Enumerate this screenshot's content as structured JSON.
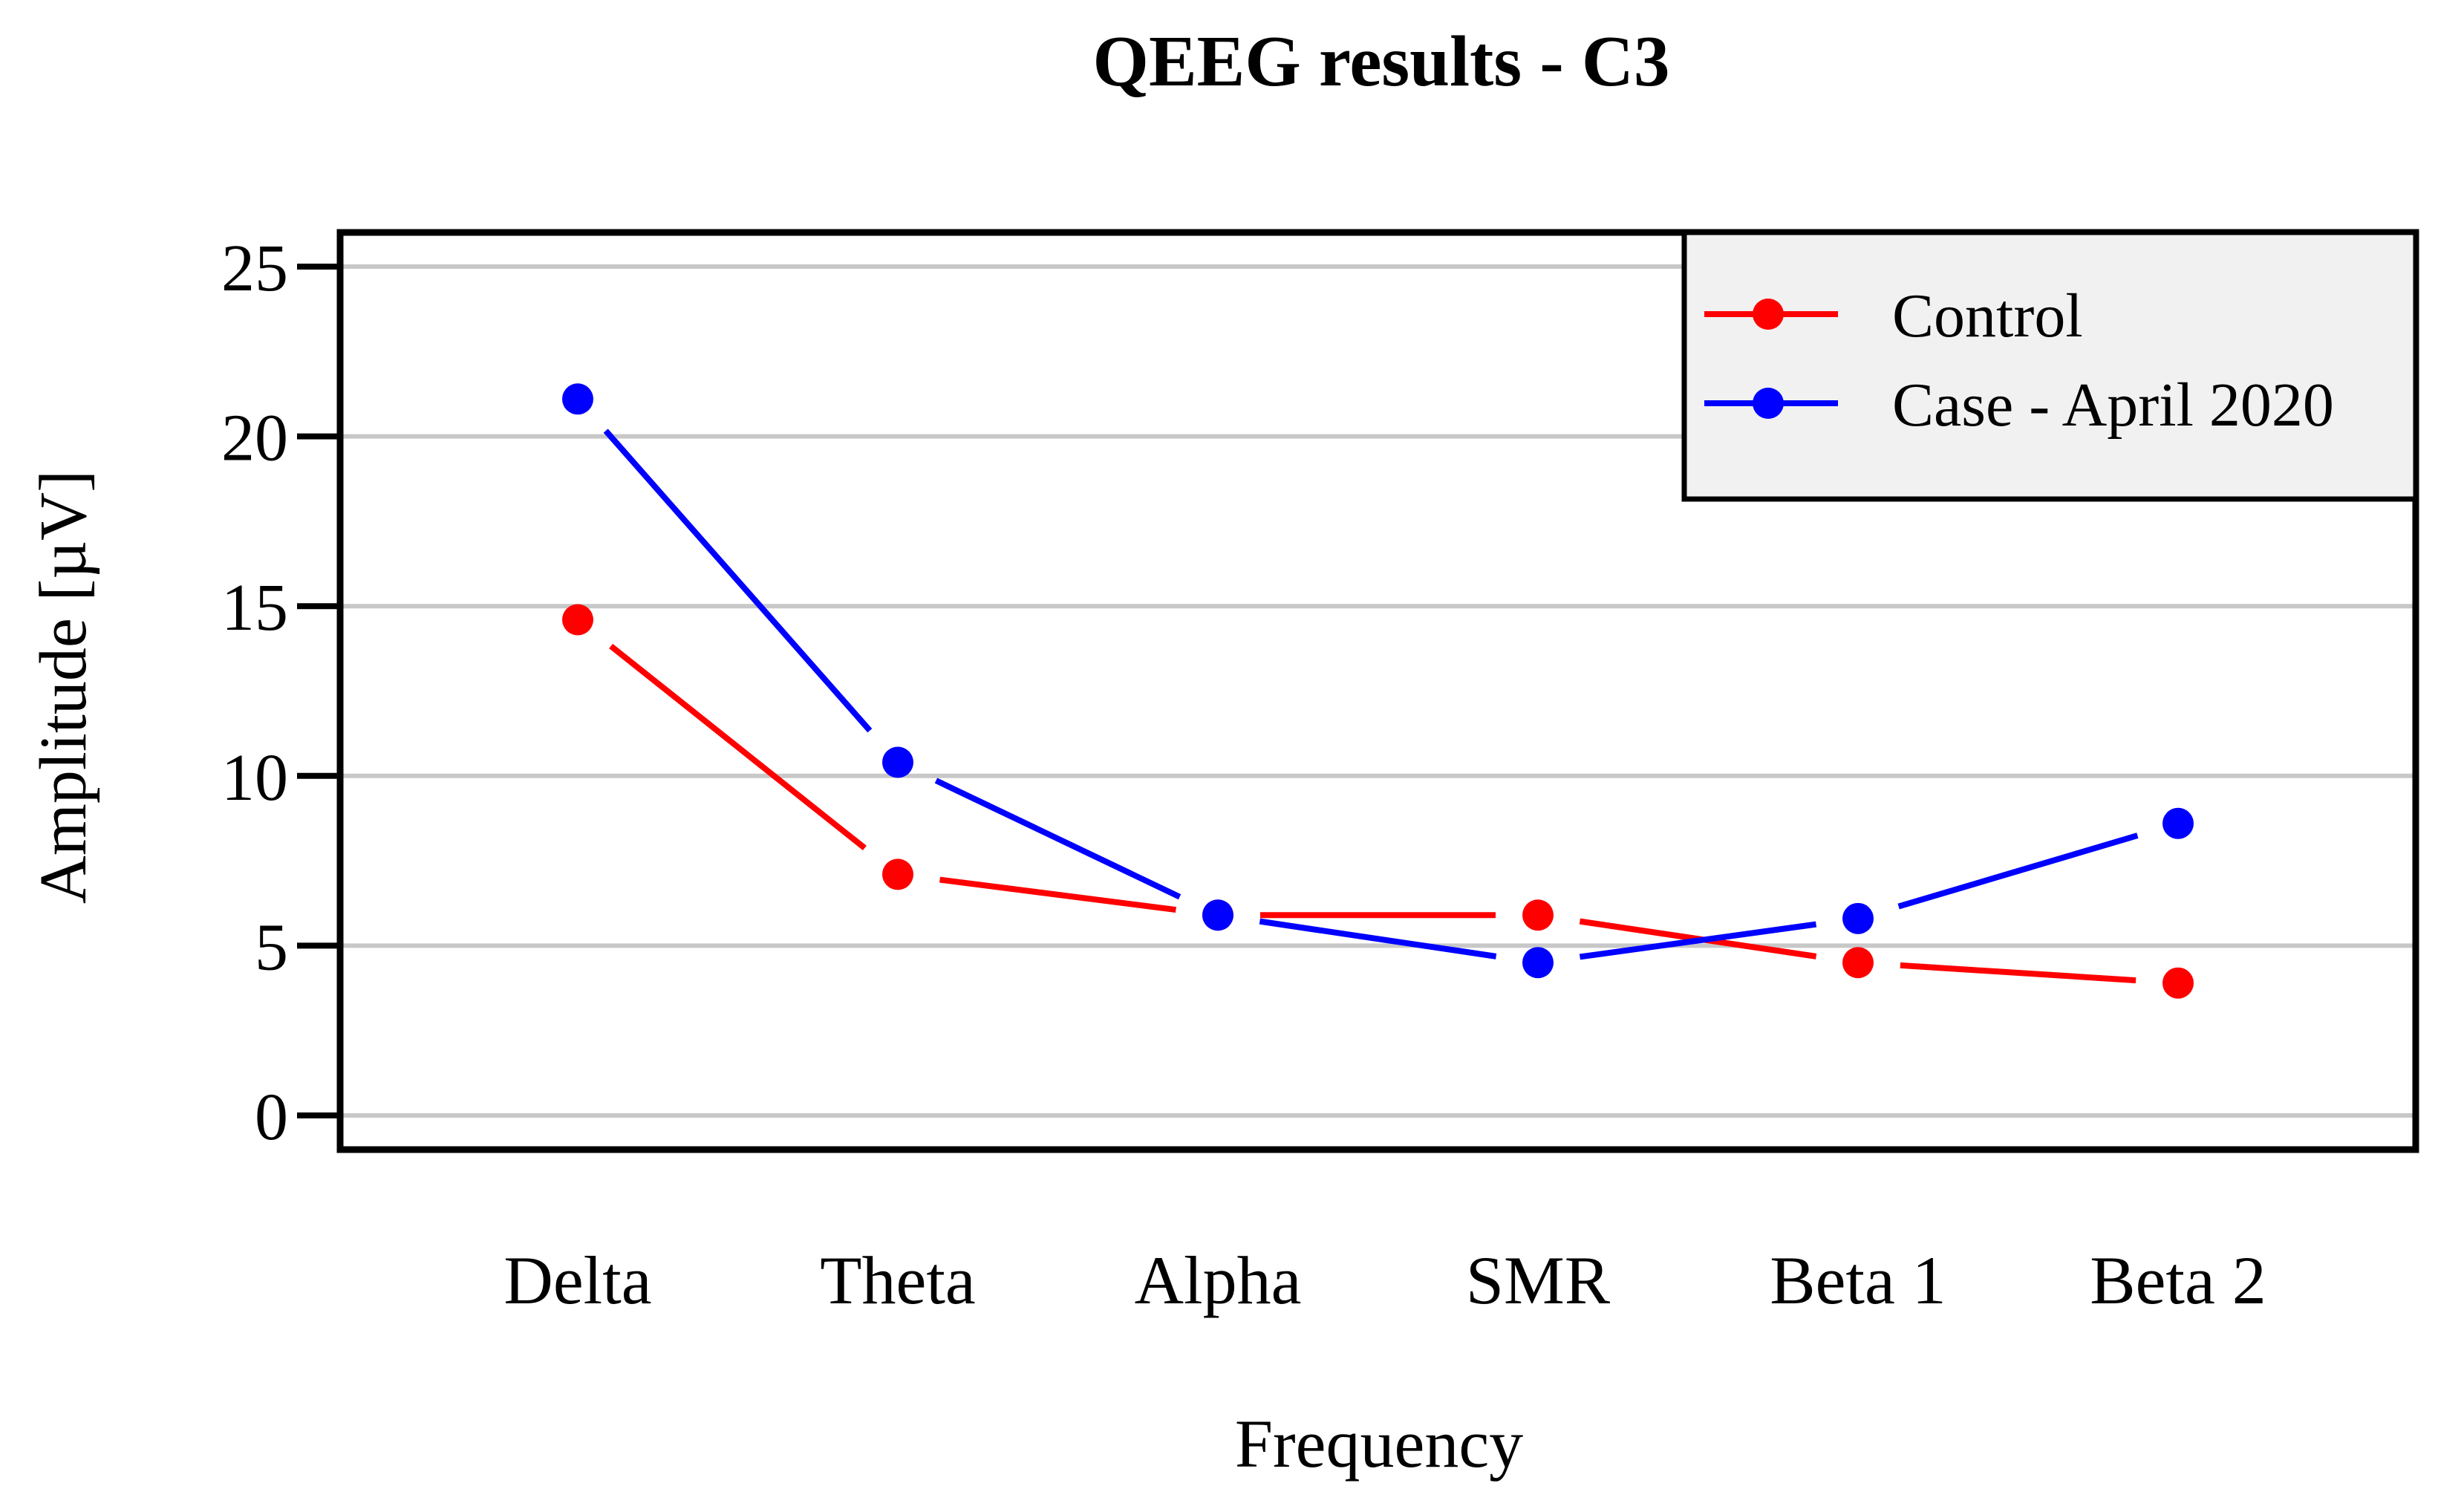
{
  "chart_data": {
    "type": "line",
    "title": "QEEG results - C3",
    "xlabel": "Frequency",
    "ylabel": "Amplitude [µV]",
    "categories": [
      "Delta",
      "Theta",
      "Alpha",
      "SMR",
      "Beta 1",
      "Beta 2"
    ],
    "series": [
      {
        "name": "Control",
        "color": "#FF0000",
        "values": [
          14.6,
          7.1,
          5.9,
          5.9,
          4.5,
          3.9
        ]
      },
      {
        "name": "Case - April 2020",
        "color": "#0000FF",
        "values": [
          21.1,
          10.4,
          5.9,
          4.5,
          5.8,
          8.6
        ]
      }
    ],
    "ylim": [
      0,
      25
    ],
    "yticks": [
      0,
      5,
      10,
      15,
      20,
      25
    ],
    "grid": true,
    "legend_position": "top-right",
    "marker": "circle"
  },
  "colors": {
    "gridline": "#C8C8C8",
    "axis_frame": "#000000",
    "legend_background": "#F1F1F1",
    "legend_border": "#000000",
    "text": "#000000",
    "page_background": "#FFFFFF"
  }
}
